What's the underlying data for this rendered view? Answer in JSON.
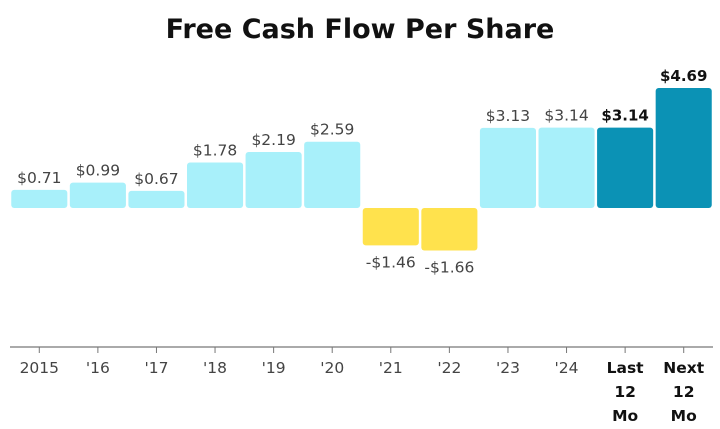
{
  "chart_data": {
    "type": "bar",
    "title": "Free Cash Flow Per Share",
    "xlabel": "",
    "ylabel": "",
    "grid": false,
    "legend": "none",
    "ylim": [
      -2.11,
      4.69
    ],
    "categories": [
      "2015",
      "'16",
      "'17",
      "'18",
      "'19",
      "'20",
      "'21",
      "'22",
      "'23",
      "'24",
      "Last 12 Mo",
      "Next 12 Mo"
    ],
    "values": [
      0.71,
      0.99,
      0.67,
      1.78,
      2.19,
      2.59,
      -1.46,
      -1.66,
      3.13,
      3.14,
      3.14,
      4.69
    ],
    "value_labels": [
      "$0.71",
      "$0.99",
      "$0.67",
      "$1.78",
      "$2.19",
      "$2.59",
      "-$1.46",
      "-$1.66",
      "$3.13",
      "$3.14",
      "$3.14",
      "$4.69"
    ],
    "highlighted": [
      false,
      false,
      false,
      false,
      false,
      false,
      false,
      false,
      false,
      false,
      true,
      true
    ],
    "colors": {
      "positive": "#a8f0fa",
      "negative": "#ffe24d",
      "highlight": "#0b92b5",
      "axis": "#777777",
      "label": "#444444",
      "label_bold": "#111111"
    }
  }
}
